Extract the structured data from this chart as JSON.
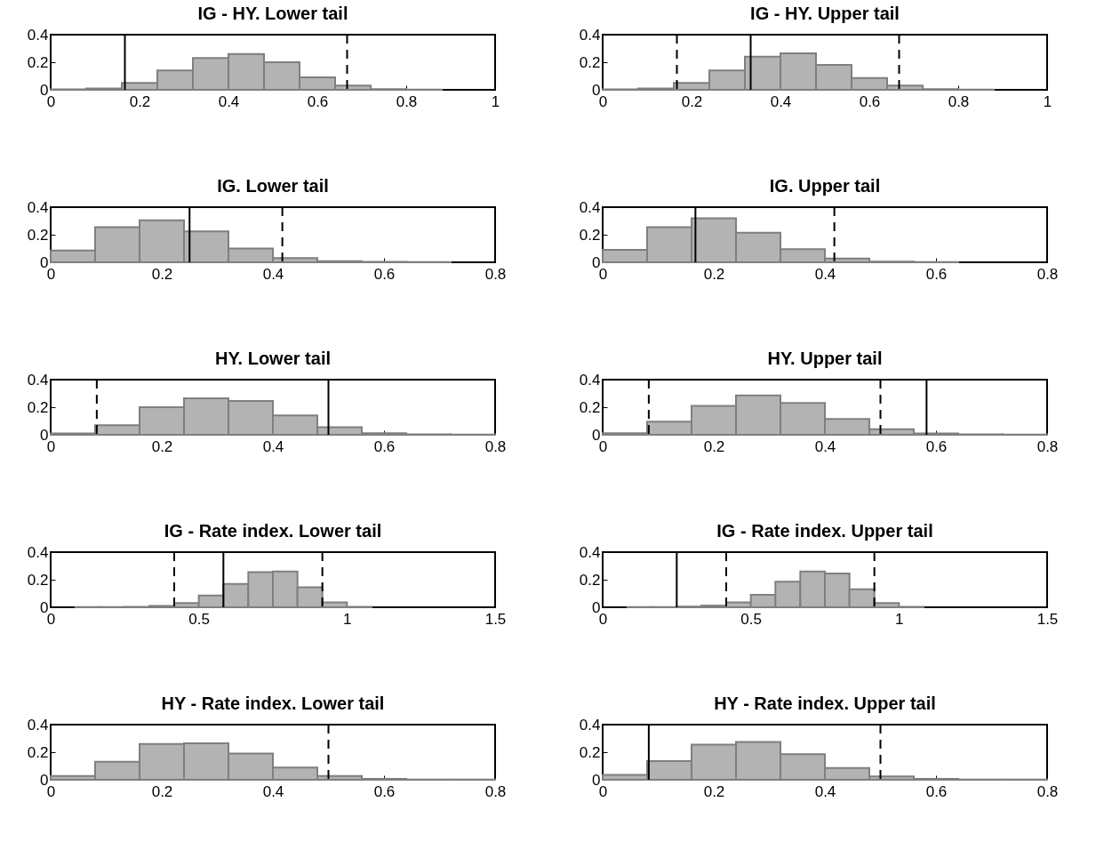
{
  "chart_data": [
    {
      "type": "histogram",
      "title": "IG - HY. Lower tail",
      "bins": [
        0,
        0.08,
        0.16,
        0.24,
        0.32,
        0.4,
        0.48,
        0.56,
        0.64,
        0.72,
        0.8,
        0.88
      ],
      "values": [
        0.003,
        0.01,
        0.05,
        0.14,
        0.23,
        0.26,
        0.2,
        0.09,
        0.03,
        0.005,
        0.002
      ],
      "color": "#b3b3b3",
      "xlim": [
        0,
        1
      ],
      "xticks": [
        0,
        0.2,
        0.4,
        0.6,
        0.8,
        1
      ],
      "ylim": [
        0,
        0.4
      ],
      "yticks": [
        0,
        0.2,
        0.4
      ],
      "grid": false,
      "ref_lines": [
        {
          "axis": "x",
          "value": 0.167,
          "line_style": "solid"
        },
        {
          "axis": "x",
          "value": 0.667,
          "line_style": "dashed"
        }
      ]
    },
    {
      "type": "histogram",
      "title": "IG - HY. Upper tail",
      "bins": [
        0,
        0.08,
        0.16,
        0.24,
        0.32,
        0.4,
        0.48,
        0.56,
        0.64,
        0.72,
        0.8,
        0.88
      ],
      "values": [
        0.003,
        0.01,
        0.05,
        0.14,
        0.24,
        0.265,
        0.18,
        0.085,
        0.03,
        0.005,
        0.002
      ],
      "color": "#b3b3b3",
      "xlim": [
        0,
        1
      ],
      "xticks": [
        0,
        0.2,
        0.4,
        0.6,
        0.8,
        1
      ],
      "ylim": [
        0,
        0.4
      ],
      "yticks": [
        0,
        0.2,
        0.4
      ],
      "grid": false,
      "ref_lines": [
        {
          "axis": "x",
          "value": 0.167,
          "line_style": "dashed"
        },
        {
          "axis": "x",
          "value": 0.333,
          "line_style": "solid"
        },
        {
          "axis": "x",
          "value": 0.667,
          "line_style": "dashed"
        }
      ]
    },
    {
      "type": "histogram",
      "title": "IG. Lower tail",
      "bins": [
        0,
        0.08,
        0.16,
        0.24,
        0.32,
        0.4,
        0.48,
        0.56,
        0.64,
        0.72
      ],
      "values": [
        0.085,
        0.255,
        0.305,
        0.225,
        0.1,
        0.03,
        0.008,
        0.003,
        0.002
      ],
      "color": "#b3b3b3",
      "xlim": [
        0,
        0.8
      ],
      "xticks": [
        0,
        0.2,
        0.4,
        0.6,
        0.8
      ],
      "ylim": [
        0,
        0.4
      ],
      "yticks": [
        0,
        0.2,
        0.4
      ],
      "grid": false,
      "ref_lines": [
        {
          "axis": "x",
          "value": 0.25,
          "line_style": "solid"
        },
        {
          "axis": "x",
          "value": 0.417,
          "line_style": "dashed"
        }
      ]
    },
    {
      "type": "histogram",
      "title": "IG. Upper tail",
      "bins": [
        0,
        0.08,
        0.16,
        0.24,
        0.32,
        0.4,
        0.48,
        0.56,
        0.64
      ],
      "values": [
        0.09,
        0.255,
        0.32,
        0.215,
        0.095,
        0.028,
        0.005,
        0.002
      ],
      "color": "#b3b3b3",
      "xlim": [
        0,
        0.8
      ],
      "xticks": [
        0,
        0.2,
        0.4,
        0.6,
        0.8
      ],
      "ylim": [
        0,
        0.4
      ],
      "yticks": [
        0,
        0.2,
        0.4
      ],
      "grid": false,
      "ref_lines": [
        {
          "axis": "x",
          "value": 0.167,
          "line_style": "solid"
        },
        {
          "axis": "x",
          "value": 0.417,
          "line_style": "dashed"
        }
      ]
    },
    {
      "type": "histogram",
      "title": "HY. Lower tail",
      "bins": [
        0,
        0.08,
        0.16,
        0.24,
        0.32,
        0.4,
        0.48,
        0.56,
        0.64,
        0.72,
        0.8
      ],
      "values": [
        0.01,
        0.07,
        0.2,
        0.265,
        0.245,
        0.14,
        0.055,
        0.012,
        0.003,
        0.001
      ],
      "color": "#b3b3b3",
      "xlim": [
        0,
        0.8
      ],
      "xticks": [
        0,
        0.2,
        0.4,
        0.6,
        0.8
      ],
      "ylim": [
        0,
        0.4
      ],
      "yticks": [
        0,
        0.2,
        0.4
      ],
      "grid": false,
      "ref_lines": [
        {
          "axis": "x",
          "value": 0.083,
          "line_style": "dashed"
        },
        {
          "axis": "x",
          "value": 0.5,
          "line_style": "solid"
        }
      ]
    },
    {
      "type": "histogram",
      "title": "HY. Upper tail",
      "bins": [
        0,
        0.08,
        0.16,
        0.24,
        0.32,
        0.4,
        0.48,
        0.56,
        0.64,
        0.72,
        0.8
      ],
      "values": [
        0.012,
        0.095,
        0.21,
        0.285,
        0.23,
        0.115,
        0.04,
        0.01,
        0.003,
        0.001
      ],
      "color": "#b3b3b3",
      "xlim": [
        0,
        0.8
      ],
      "xticks": [
        0,
        0.2,
        0.4,
        0.6,
        0.8
      ],
      "ylim": [
        0,
        0.4
      ],
      "yticks": [
        0,
        0.2,
        0.4
      ],
      "grid": false,
      "ref_lines": [
        {
          "axis": "x",
          "value": 0.083,
          "line_style": "dashed"
        },
        {
          "axis": "x",
          "value": 0.5,
          "line_style": "dashed"
        },
        {
          "axis": "x",
          "value": 0.583,
          "line_style": "solid"
        }
      ]
    },
    {
      "type": "histogram",
      "title": "IG - Rate index. Lower tail",
      "bins": [
        0.083,
        0.167,
        0.25,
        0.333,
        0.417,
        0.5,
        0.583,
        0.667,
        0.75,
        0.833,
        0.917,
        1.0,
        1.083
      ],
      "values": [
        0.001,
        0.002,
        0.003,
        0.01,
        0.03,
        0.085,
        0.17,
        0.255,
        0.26,
        0.145,
        0.035,
        0.003
      ],
      "color": "#b3b3b3",
      "xlim": [
        0,
        1.5
      ],
      "xticks": [
        0,
        0.5,
        1,
        1.5
      ],
      "ylim": [
        0,
        0.4
      ],
      "yticks": [
        0,
        0.2,
        0.4
      ],
      "grid": false,
      "ref_lines": [
        {
          "axis": "x",
          "value": 0.417,
          "line_style": "dashed"
        },
        {
          "axis": "x",
          "value": 0.583,
          "line_style": "solid"
        },
        {
          "axis": "x",
          "value": 0.917,
          "line_style": "dashed"
        }
      ]
    },
    {
      "type": "histogram",
      "title": "IG - Rate index. Upper tail",
      "bins": [
        0.083,
        0.167,
        0.25,
        0.333,
        0.417,
        0.5,
        0.583,
        0.667,
        0.75,
        0.833,
        0.917,
        1.0,
        1.083
      ],
      "values": [
        0.002,
        0.002,
        0.005,
        0.012,
        0.035,
        0.09,
        0.185,
        0.26,
        0.245,
        0.13,
        0.03,
        0.003
      ],
      "color": "#b3b3b3",
      "xlim": [
        0,
        1.5
      ],
      "xticks": [
        0,
        0.5,
        1,
        1.5
      ],
      "ylim": [
        0,
        0.4
      ],
      "yticks": [
        0,
        0.2,
        0.4
      ],
      "grid": false,
      "ref_lines": [
        {
          "axis": "x",
          "value": 0.25,
          "line_style": "solid"
        },
        {
          "axis": "x",
          "value": 0.417,
          "line_style": "dashed"
        },
        {
          "axis": "x",
          "value": 0.917,
          "line_style": "dashed"
        }
      ]
    },
    {
      "type": "histogram",
      "title": "HY - Rate index. Lower tail",
      "bins": [
        0,
        0.08,
        0.16,
        0.24,
        0.32,
        0.4,
        0.48,
        0.56,
        0.64,
        0.72,
        0.8
      ],
      "values": [
        0.028,
        0.13,
        0.26,
        0.265,
        0.19,
        0.088,
        0.028,
        0.006,
        0.002,
        0.001
      ],
      "color": "#b3b3b3",
      "xlim": [
        0,
        0.8
      ],
      "xticks": [
        0,
        0.2,
        0.4,
        0.6,
        0.8
      ],
      "ylim": [
        0,
        0.4
      ],
      "yticks": [
        0,
        0.2,
        0.4
      ],
      "grid": false,
      "ref_lines": [
        {
          "axis": "x",
          "value": 0.5,
          "line_style": "dashed"
        }
      ]
    },
    {
      "type": "histogram",
      "title": "HY - Rate index. Upper tail",
      "bins": [
        0,
        0.08,
        0.16,
        0.24,
        0.32,
        0.4,
        0.48,
        0.56,
        0.64,
        0.72,
        0.8
      ],
      "values": [
        0.035,
        0.135,
        0.255,
        0.275,
        0.185,
        0.085,
        0.025,
        0.006,
        0.002,
        0.001
      ],
      "color": "#b3b3b3",
      "xlim": [
        0,
        0.8
      ],
      "xticks": [
        0,
        0.2,
        0.4,
        0.6,
        0.8
      ],
      "ylim": [
        0,
        0.4
      ],
      "yticks": [
        0,
        0.2,
        0.4
      ],
      "grid": false,
      "ref_lines": [
        {
          "axis": "x",
          "value": 0.083,
          "line_style": "solid"
        },
        {
          "axis": "x",
          "value": 0.5,
          "line_style": "dashed"
        }
      ]
    }
  ]
}
